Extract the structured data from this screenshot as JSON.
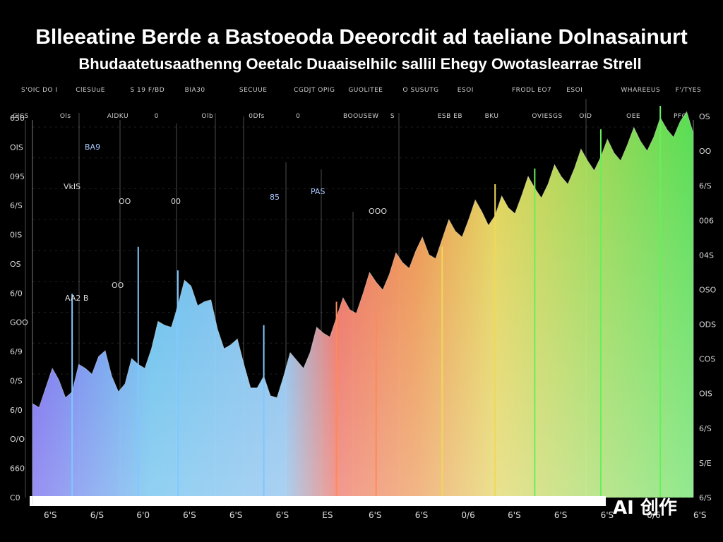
{
  "chart_data": {
    "type": "area",
    "title": "Blleeatine Berde a Bastoeoda  Deeorcdit ad taeliane  Dolnasainurt",
    "subtitle": "Bhudaatetusaathenng  Oeetalc  Duaaiselhilc sallil  Ehegy  Owotaslearrae Strell",
    "top_labels": [
      "S'OIC DO I",
      "ClESUuE",
      "S 19 F/BD",
      "BIA30",
      "SECUUE",
      "CGDJT OPIG",
      "GUOLITEE",
      "O SUSUTG",
      "ESOI",
      "FRODL EO7",
      "ESOI",
      "WHAREEUS",
      "F'/TYES"
    ],
    "column_labels": [
      "ClCS",
      "Ols",
      "AlDKU",
      "0",
      "Olb",
      "0Dfs",
      "0",
      "BOOUSEW",
      "S",
      "ESB EB",
      "BKU",
      "OVIESGS",
      "OID",
      "OEE",
      "PFO"
    ],
    "y_ticks_left": [
      "650",
      "OIS",
      "095",
      "6/S",
      "0IS",
      "OS",
      "6/0",
      "GOO",
      "6/9",
      "0/S",
      "6/0",
      "O/O",
      "660",
      "C0"
    ],
    "y_ticks_right": [
      "OS",
      "OO",
      "6/S",
      "006",
      "04S",
      "OSO",
      "ODS",
      "COS",
      "OIS",
      "6/S",
      "S/E",
      "6/S"
    ],
    "x_ticks": [
      "6'S",
      "6/S",
      "6'0",
      "6'S",
      "6'S",
      "6'S",
      "ES",
      "6'S",
      "6'S",
      "0/6",
      "6'S",
      "6'S",
      "6'S",
      "0/6",
      "6'S"
    ],
    "annotations": [
      "BA9",
      "VkIS",
      "OO",
      "00",
      "AA2 B",
      "OO",
      "85",
      "PAS",
      "OOO"
    ],
    "ylim": [
      0,
      100
    ],
    "x": [
      0,
      2,
      4,
      6,
      8,
      10,
      12,
      14,
      16,
      18,
      20,
      22,
      24,
      26,
      28,
      30,
      32,
      34,
      36,
      38,
      40,
      42,
      44,
      46,
      48,
      50,
      52,
      54,
      56,
      58,
      60,
      62,
      64,
      66,
      68,
      70,
      72,
      74,
      76,
      78,
      80,
      82,
      84,
      86,
      88,
      90,
      92,
      94,
      96,
      98,
      100
    ],
    "values": [
      24,
      28,
      30,
      27,
      33,
      36,
      31,
      29,
      34,
      38,
      44,
      49,
      54,
      50,
      43,
      39,
      34,
      28,
      26,
      31,
      35,
      37,
      42,
      46,
      48,
      52,
      55,
      57,
      60,
      63,
      62,
      66,
      68,
      71,
      73,
      72,
      74,
      77,
      79,
      80,
      82,
      84,
      86,
      87,
      88,
      90,
      91,
      92,
      94,
      96,
      93
    ],
    "spikes": [
      [
        6,
        52
      ],
      [
        16,
        64
      ],
      [
        22,
        58
      ],
      [
        35,
        44
      ],
      [
        46,
        50
      ],
      [
        52,
        48
      ],
      [
        62,
        64
      ],
      [
        70,
        80
      ],
      [
        76,
        84
      ],
      [
        86,
        94
      ],
      [
        95,
        100
      ]
    ],
    "colors": {
      "background": "#000000",
      "low": "#6a5cff",
      "mid_blue": "#5ec8ff",
      "mid_red": "#ff6a5a",
      "mid_orange": "#ffb340",
      "mid_yellow": "#f4f15a",
      "high_green": "#5ef05a"
    },
    "grid": true,
    "legend": "none"
  },
  "watermark": "AI 创作"
}
